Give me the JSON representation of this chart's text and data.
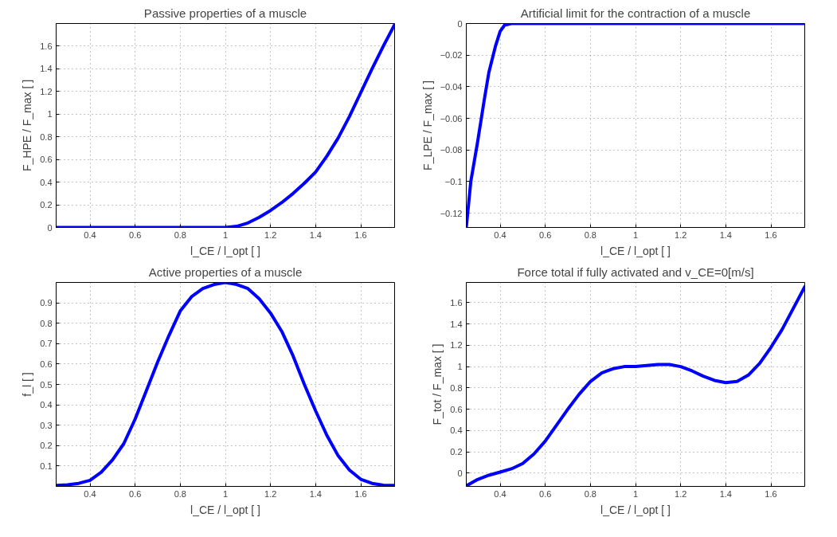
{
  "chart_data": [
    {
      "type": "line",
      "title": "Passive properties of a muscle",
      "xlabel": "l_CE / l_opt [ ]",
      "ylabel": "F_HPE / F_max [ ]",
      "grid": true,
      "x": [
        0.25,
        0.4,
        0.6,
        0.8,
        1.0,
        1.05,
        1.1,
        1.15,
        1.2,
        1.25,
        1.3,
        1.35,
        1.4,
        1.45,
        1.5,
        1.55,
        1.6,
        1.65,
        1.7,
        1.75
      ],
      "series": [
        {
          "color": "#0000ff",
          "values": [
            0,
            0,
            0,
            0,
            0,
            0.01,
            0.04,
            0.09,
            0.15,
            0.22,
            0.3,
            0.39,
            0.49,
            0.63,
            0.79,
            0.98,
            1.19,
            1.4,
            1.6,
            1.79
          ]
        }
      ],
      "xlim": [
        0.25,
        1.75
      ],
      "ylim": [
        0,
        1.8
      ],
      "xticks": [
        0.4,
        0.6,
        0.8,
        1,
        1.2,
        1.4,
        1.6
      ],
      "yticks": [
        0,
        0.2,
        0.4,
        0.6,
        0.8,
        1,
        1.2,
        1.4,
        1.6
      ]
    },
    {
      "type": "line",
      "title": "Artificial limit for the contraction of a muscle",
      "xlabel": "l_CE / l_opt [ ]",
      "ylabel": "F_LPE / F_max [ ]",
      "grid": true,
      "x": [
        0.25,
        0.27,
        0.3,
        0.33,
        0.35,
        0.38,
        0.4,
        0.42,
        0.45,
        0.6,
        0.8,
        1.0,
        1.2,
        1.4,
        1.6,
        1.75
      ],
      "series": [
        {
          "color": "#0000ff",
          "values": [
            -0.129,
            -0.1,
            -0.075,
            -0.048,
            -0.031,
            -0.014,
            -0.005,
            -0.001,
            0,
            0,
            0,
            0,
            0,
            0,
            0,
            0
          ]
        }
      ],
      "xlim": [
        0.25,
        1.75
      ],
      "ylim": [
        -0.129,
        0
      ],
      "xticks": [
        0.4,
        0.6,
        0.8,
        1,
        1.2,
        1.4,
        1.6
      ],
      "yticks": [
        -0.12,
        -0.1,
        -0.08,
        -0.06,
        -0.04,
        -0.02,
        0
      ]
    },
    {
      "type": "line",
      "title": "Active properties of a muscle",
      "xlabel": "l_CE / l_opt [ ]",
      "ylabel": "f_l [ ]",
      "grid": true,
      "x": [
        0.25,
        0.3,
        0.35,
        0.4,
        0.45,
        0.5,
        0.55,
        0.6,
        0.65,
        0.7,
        0.75,
        0.8,
        0.85,
        0.9,
        0.95,
        1.0,
        1.05,
        1.1,
        1.15,
        1.2,
        1.25,
        1.3,
        1.35,
        1.4,
        1.45,
        1.5,
        1.55,
        1.6,
        1.65,
        1.7,
        1.75
      ],
      "series": [
        {
          "color": "#0000ff",
          "values": [
            0.005,
            0.008,
            0.015,
            0.03,
            0.07,
            0.13,
            0.21,
            0.33,
            0.47,
            0.61,
            0.74,
            0.86,
            0.93,
            0.97,
            0.99,
            1.0,
            0.99,
            0.97,
            0.92,
            0.85,
            0.76,
            0.64,
            0.5,
            0.37,
            0.25,
            0.15,
            0.08,
            0.035,
            0.015,
            0.006,
            0.005
          ]
        }
      ],
      "xlim": [
        0.25,
        1.75
      ],
      "ylim": [
        0,
        1
      ],
      "xticks": [
        0.4,
        0.6,
        0.8,
        1,
        1.2,
        1.4,
        1.6
      ],
      "yticks": [
        0.1,
        0.2,
        0.3,
        0.4,
        0.5,
        0.6,
        0.7,
        0.8,
        0.9
      ]
    },
    {
      "type": "line",
      "title": "Force total if fully activated and v_CE=0[m/s]",
      "xlabel": "l_CE / l_opt [ ]",
      "ylabel": "F_tot / F_max [ ]",
      "grid": true,
      "x": [
        0.25,
        0.3,
        0.35,
        0.4,
        0.45,
        0.5,
        0.55,
        0.6,
        0.65,
        0.7,
        0.75,
        0.8,
        0.85,
        0.9,
        0.95,
        1.0,
        1.05,
        1.1,
        1.15,
        1.2,
        1.25,
        1.3,
        1.35,
        1.4,
        1.45,
        1.5,
        1.55,
        1.6,
        1.65,
        1.7,
        1.75
      ],
      "series": [
        {
          "color": "#0000ff",
          "values": [
            -0.12,
            -0.06,
            -0.02,
            0.01,
            0.04,
            0.09,
            0.18,
            0.3,
            0.45,
            0.6,
            0.74,
            0.86,
            0.94,
            0.98,
            1.0,
            1.0,
            1.01,
            1.02,
            1.02,
            1.0,
            0.96,
            0.91,
            0.87,
            0.85,
            0.86,
            0.92,
            1.03,
            1.18,
            1.35,
            1.55,
            1.75
          ]
        }
      ],
      "xlim": [
        0.25,
        1.75
      ],
      "ylim": [
        -0.125,
        1.79
      ],
      "xticks": [
        0.4,
        0.6,
        0.8,
        1,
        1.2,
        1.4,
        1.6
      ],
      "yticks": [
        0,
        0.2,
        0.4,
        0.6,
        0.8,
        1,
        1.2,
        1.4,
        1.6
      ]
    }
  ]
}
